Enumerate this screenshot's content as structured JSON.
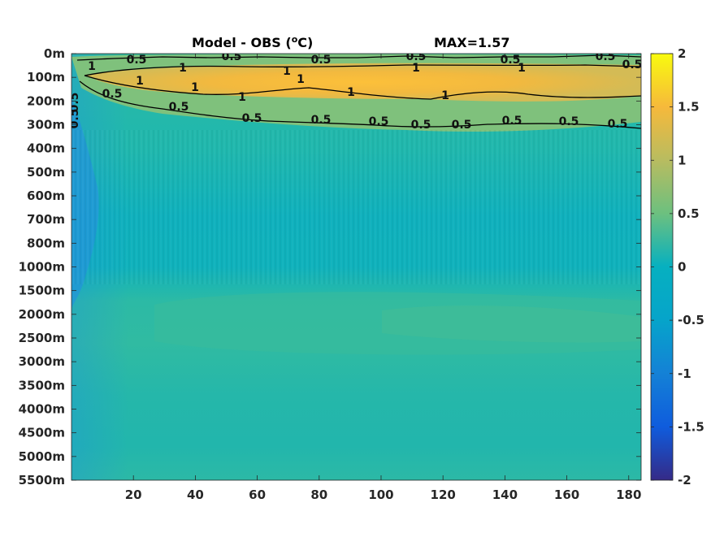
{
  "chart_data": {
    "type": "heatmap",
    "title": "Model - OBS (",
    "title_unit_sup": "o",
    "title_unit": "C)",
    "max_label": "MAX=1.57",
    "xlim": [
      0,
      184
    ],
    "x_ticks": [
      20,
      40,
      60,
      80,
      100,
      120,
      140,
      160,
      180
    ],
    "y_tick_labels": [
      "0m",
      "100m",
      "200m",
      "300m",
      "400m",
      "500m",
      "600m",
      "700m",
      "800m",
      "1000m",
      "1500m",
      "2000m",
      "2500m",
      "3000m",
      "3500m",
      "4000m",
      "4500m",
      "5000m",
      "5500m"
    ],
    "colorbar": {
      "colormap": "parula",
      "range": [
        -2,
        2
      ],
      "ticks": [
        "2",
        "1.5",
        "1",
        "0.5",
        "0",
        "-0.5",
        "-1",
        "-1.5",
        "-2"
      ],
      "colors": [
        "#352a87",
        "#0f5cdd",
        "#1481d6",
        "#06a4ca",
        "#2eb7a4",
        "#87bf77",
        "#d1bb59",
        "#fec832",
        "#f9fb0e"
      ]
    },
    "contour_levels": [
      0.5,
      1
    ],
    "contour_labels": {
      "upper_half": [
        "0.5",
        "0.5",
        "0.5",
        "0.5",
        "0.5",
        "0.5"
      ],
      "one": [
        "1",
        "1",
        "1",
        "1",
        "1",
        "1",
        "1",
        "1",
        "1",
        "1",
        "1"
      ],
      "lower_half": [
        "0.5",
        "0.5",
        "0.5",
        "0.5",
        "0.5",
        "0.5",
        "0.5",
        "0.5",
        "0.5",
        "0.5",
        "0.5"
      ],
      "edge": [
        "0.5",
        "0.5"
      ]
    },
    "profile": [
      {
        "depth": "0m",
        "value": 0.4
      },
      {
        "depth": "100m",
        "value": 1.3
      },
      {
        "depth": "200m",
        "value": 0.9
      },
      {
        "depth": "300m",
        "value": 0.35
      },
      {
        "depth": "400m",
        "value": 0.2
      },
      {
        "depth": "500m",
        "value": 0.15
      },
      {
        "depth": "600m",
        "value": 0.1
      },
      {
        "depth": "700m",
        "value": 0.05
      },
      {
        "depth": "800m",
        "value": 0.0
      },
      {
        "depth": "1000m",
        "value": 0.0
      },
      {
        "depth": "1500m",
        "value": 0.15
      },
      {
        "depth": "2000m",
        "value": 0.25
      },
      {
        "depth": "2500m",
        "value": 0.25
      },
      {
        "depth": "3000m",
        "value": 0.2
      },
      {
        "depth": "3500m",
        "value": 0.18
      },
      {
        "depth": "4000m",
        "value": 0.15
      },
      {
        "depth": "4500m",
        "value": 0.15
      },
      {
        "depth": "5000m",
        "value": 0.2
      },
      {
        "depth": "5500m",
        "value": 0.25
      }
    ]
  }
}
